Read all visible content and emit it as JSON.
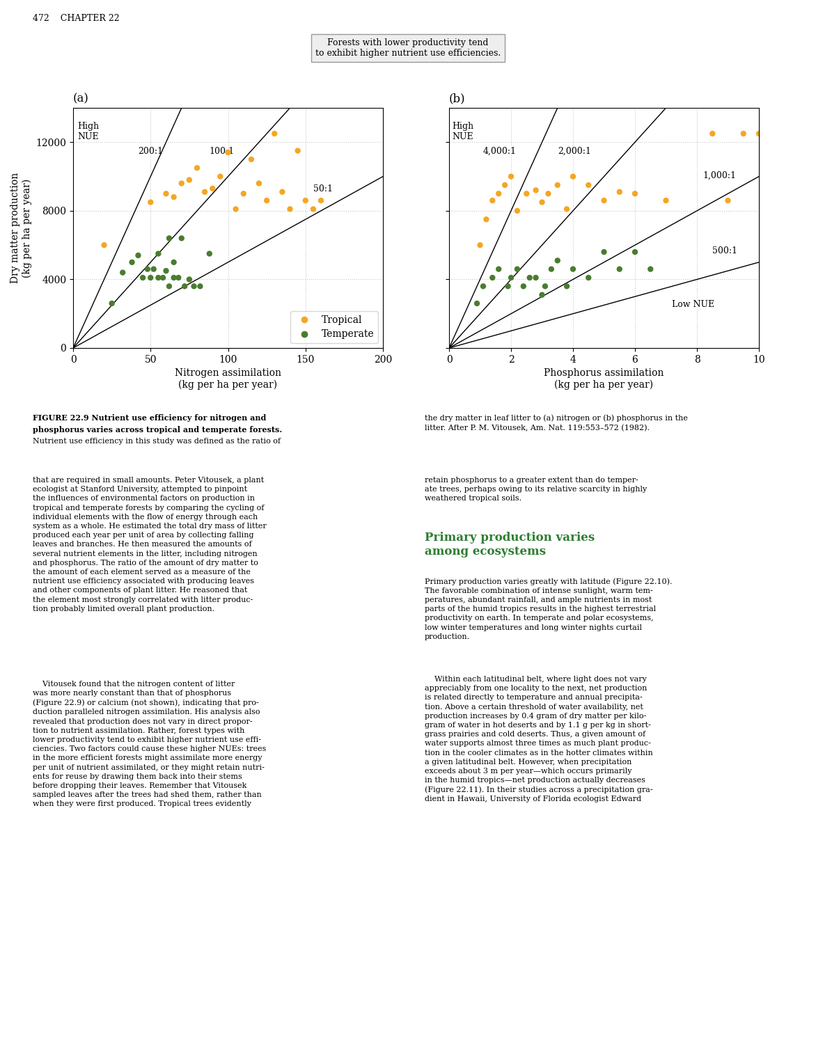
{
  "page_texts": {
    "header": "472    CHAPTER 22",
    "callout": "Forests with lower productivity tend\nto exhibit higher nutrient use efficiencies.",
    "caption_bold": [
      "FIGURE 22.9 ",
      "Nutrient use efficiency for nitrogen and",
      "phosphorus varies across tropical and temperate forests."
    ],
    "caption": "Nutrient use efficiency in this study was defined as the ratio of",
    "caption_right": "the dry matter in leaf litter to (a) nitrogen or (b) phosphorus in the\nlitter. After P. M. Vitousek, Am. Nat. 119:553–572 (1982).",
    "section_heading": {
      "text": "Primary production varies\namong ecosystems",
      "color": "#2E7D32"
    },
    "body_left": [
      "that are required in small amounts. Peter Vitousek, a plant\necologist at Stanford University, attempted to pinpoint\nthe influences of environmental factors on production in\ntropical and temperate forests by comparing the cycling of\nindividual elements with the flow of energy through each\nsystem as a whole. He estimated the total dry mass of litter\nproduced each year per unit of area by collecting falling\nleaves and branches. He then measured the amounts of\nseveral nutrient elements in the litter, including nitrogen\nand phosphorus. The ratio of the amount of dry matter to\nthe amount of each element served as a measure of the\nnutrient use efficiency associated with producing leaves\nand other components of plant litter. He reasoned that\nthe element most strongly correlated with litter produc-\ntion probably limited overall plant production.",
      "    Vitousek found that the nitrogen content of litter\nwas more nearly constant than that of phosphorus\n(Figure 22.9) or calcium (not shown), indicating that pro-\nduction paralleled nitrogen assimilation. His analysis also\nrevealed that production does not vary in direct propor-\ntion to nutrient assimilation. Rather, forest types with\nlower productivity tend to exhibit higher nutrient use effi-\nciencies. Two factors could cause these higher NUEs: trees\nin the more efficient forests might assimilate more energy\nper unit of nutrient assimilated, or they might retain nutri-\nents for reuse by drawing them back into their stems\nbefore dropping their leaves. Remember that Vitousek\nsampled leaves after the trees had shed them, rather than\nwhen they were first produced. Tropical trees evidently"
    ],
    "body_right_before_heading": [
      "retain phosphorus to a greater extent than do temper-\nate trees, perhaps owing to its relative scarcity in highly\nweathered tropical soils."
    ],
    "body_right_after_heading": [
      "Primary production varies greatly with latitude (Figure 22.10).\nThe favorable combination of intense sunlight, warm tem-\nperatures, abundant rainfall, and ample nutrients in most\nparts of the humid tropics results in the highest terrestrial\nproductivity on earth. In temperate and polar ecosystems,\nlow winter temperatures and long winter nights curtail\nproduction.",
      "    Within each latitudinal belt, where light does not vary\nappreciably from one locality to the next, net production\nis related directly to temperature and annual precipita-\ntion. Above a certain threshold of water availability, net\nproduction increases by 0.4 gram of dry matter per kilo-\ngram of water in hot deserts and by 1.1 g per kg in short-\ngrass prairies and cold deserts. Thus, a given amount of\nwater supports almost three times as much plant produc-\ntion in the cooler climates as in the hotter climates within\na given latitudinal belt. However, when precipitation\nexceeds about 3 m per year—which occurs primarily\nin the humid tropics—net production actually decreases\n(Figure 22.11). In their studies across a precipitation gra-\ndient in Hawaii, University of Florida ecologist Edward"
    ]
  },
  "chart_data": [
    {
      "type": "scatter",
      "title": "(a)",
      "xlabel": "Nitrogen assimilation\n(kg per ha per year)",
      "ylabel": "Dry matter production\n(kg per ha per year)",
      "xlim": [
        0,
        200
      ],
      "ylim": [
        0,
        14000
      ],
      "xticks": [
        0,
        50,
        100,
        150,
        200
      ],
      "yticks": [
        0,
        4000,
        8000,
        12000
      ],
      "grid": true,
      "legend": "lower right",
      "series": [
        {
          "name": "Tropical",
          "color": "#F5A623",
          "x": [
            20,
            50,
            60,
            65,
            70,
            75,
            80,
            85,
            90,
            95,
            100,
            105,
            110,
            115,
            120,
            125,
            130,
            135,
            140,
            145,
            150,
            155,
            160
          ],
          "values": [
            6000,
            8500,
            9000,
            8800,
            9600,
            9800,
            10500,
            9100,
            9300,
            10000,
            11400,
            8100,
            9000,
            11000,
            9600,
            8600,
            12500,
            9100,
            8100,
            11500,
            8600,
            8100,
            8600
          ]
        },
        {
          "name": "Temperate",
          "color": "#4A7C2F",
          "x": [
            25,
            32,
            38,
            42,
            45,
            48,
            50,
            52,
            55,
            55,
            58,
            60,
            62,
            62,
            65,
            65,
            68,
            70,
            72,
            75,
            78,
            82,
            88
          ],
          "values": [
            2600,
            4400,
            5000,
            5400,
            4100,
            4600,
            4100,
            4600,
            4100,
            5500,
            4100,
            4500,
            6400,
            3600,
            4100,
            5000,
            4100,
            6400,
            3600,
            4000,
            3600,
            3600,
            5500
          ]
        }
      ],
      "lines": [
        {
          "slope": 200,
          "label": "200:1",
          "label_x": 42,
          "label_y": 11200
        },
        {
          "slope": 100,
          "label": "100:1",
          "label_x": 88,
          "label_y": 11200
        },
        {
          "slope": 50,
          "label": "50:1",
          "label_x": 155,
          "label_y": 9000
        }
      ],
      "annotations": [
        {
          "text": "High\nNUE",
          "x": 3,
          "y": 13200
        }
      ]
    },
    {
      "type": "scatter",
      "title": "(b)",
      "xlabel": "Phosphorus assimilation\n(kg per ha per year)",
      "xlim": [
        0,
        10
      ],
      "ylim": [
        0,
        14000
      ],
      "xticks": [
        0,
        2,
        4,
        6,
        8,
        10
      ],
      "yticks": [
        0,
        4000,
        8000,
        12000
      ],
      "grid": true,
      "tick_labels": "x",
      "series": [
        {
          "name": "Tropical",
          "color": "#F5A623",
          "x": [
            1.0,
            1.2,
            1.4,
            1.6,
            1.8,
            2.0,
            2.2,
            2.5,
            2.8,
            3.0,
            3.2,
            3.5,
            3.8,
            4.0,
            4.5,
            5.0,
            5.5,
            6.0,
            7.0,
            8.5,
            9.0,
            9.5,
            10.0
          ],
          "values": [
            6000,
            7500,
            8600,
            9000,
            9500,
            10000,
            8000,
            9000,
            9200,
            8500,
            9000,
            9500,
            8100,
            10000,
            9500,
            8600,
            9100,
            9000,
            8600,
            12500,
            8600,
            12500,
            12500
          ]
        },
        {
          "name": "Temperate",
          "color": "#4A7C2F",
          "x": [
            0.9,
            1.1,
            1.4,
            1.6,
            1.9,
            2.0,
            2.2,
            2.4,
            2.6,
            2.8,
            3.0,
            3.1,
            3.3,
            3.5,
            3.8,
            4.0,
            4.5,
            5.0,
            5.5,
            6.0,
            6.5
          ],
          "values": [
            2600,
            3600,
            4100,
            4600,
            3600,
            4100,
            4600,
            3600,
            4100,
            4100,
            3100,
            3600,
            4600,
            5100,
            3600,
            4600,
            4100,
            5600,
            4600,
            5600,
            4600
          ]
        }
      ],
      "lines": [
        {
          "slope": 4000,
          "label": "4,000:1",
          "label_x": 1.1,
          "label_y": 11200
        },
        {
          "slope": 2000,
          "label": "2,000:1",
          "label_x": 3.5,
          "label_y": 11200
        },
        {
          "slope": 1000,
          "label": "1,000:1",
          "label_x": 8.2,
          "label_y": 9800
        },
        {
          "slope": 500,
          "label": "500:1",
          "label_x": 8.5,
          "label_y": 5400
        }
      ],
      "annotations": [
        {
          "text": "High\nNUE",
          "x": 0.1,
          "y": 13200
        },
        {
          "text": "Low NUE",
          "x": 7.2,
          "y": 2800
        }
      ]
    }
  ]
}
